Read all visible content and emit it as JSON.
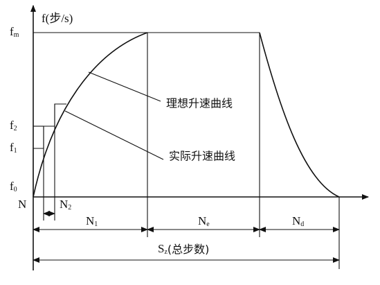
{
  "y_axis": {
    "text": "f(步/s)"
  },
  "y_labels": [
    {
      "text": "f",
      "sub": "m"
    },
    {
      "text": "f",
      "sub": "2"
    },
    {
      "text": "f",
      "sub": "1"
    },
    {
      "text": "f",
      "sub": "0"
    }
  ],
  "x_labels": [
    {
      "text": "N"
    },
    {
      "text": "N",
      "sub": "2"
    },
    {
      "text": "N",
      "sub": "1"
    },
    {
      "text": "N",
      "sub": "e"
    },
    {
      "text": "N",
      "sub": "d"
    },
    {
      "text": "S",
      "sub": "z",
      "tail": "(总步数)"
    }
  ],
  "annotations": [
    "理想升速曲线",
    "实际升速曲线"
  ]
}
